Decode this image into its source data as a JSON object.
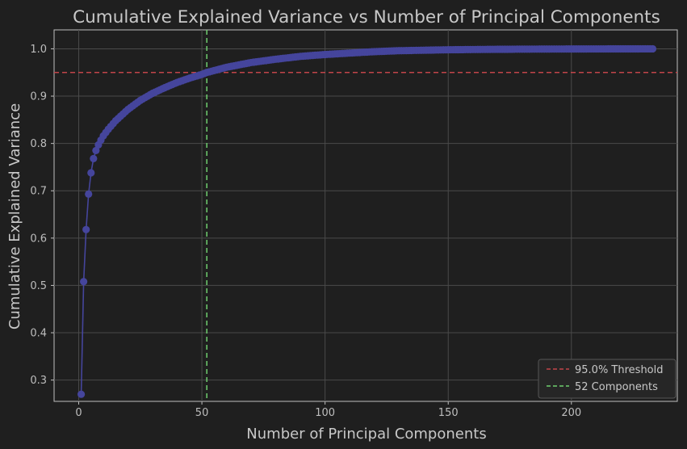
{
  "chart_data": {
    "type": "line",
    "title": "Cumulative Explained Variance vs Number of Principal Components",
    "xlabel": "Number of Principal Components",
    "ylabel": "Cumulative Explained Variance",
    "xlim": [
      -10,
      243
    ],
    "ylim": [
      0.255,
      1.04
    ],
    "xticks": [
      0,
      50,
      100,
      150,
      200
    ],
    "yticks": [
      0.3,
      0.4,
      0.5,
      0.6,
      0.7,
      0.8,
      0.9,
      1.0
    ],
    "xtick_labels": [
      "0",
      "50",
      "100",
      "150",
      "200"
    ],
    "ytick_labels": [
      "0.3",
      "0.4",
      "0.5",
      "0.6",
      "0.7",
      "0.8",
      "0.9",
      "1.0"
    ],
    "grid": true,
    "legend_position": "lower-right",
    "series": [
      {
        "name": "",
        "color": "#45459c",
        "marker": "circle",
        "x_range": [
          1,
          233
        ],
        "key_points": [
          [
            1,
            0.27
          ],
          [
            2,
            0.508
          ],
          [
            3,
            0.618
          ],
          [
            4,
            0.693
          ],
          [
            5,
            0.738
          ],
          [
            6,
            0.768
          ],
          [
            7,
            0.785
          ],
          [
            8,
            0.797
          ],
          [
            9,
            0.807
          ],
          [
            10,
            0.816
          ],
          [
            12,
            0.83
          ],
          [
            15,
            0.848
          ],
          [
            20,
            0.872
          ],
          [
            25,
            0.891
          ],
          [
            30,
            0.906
          ],
          [
            35,
            0.918
          ],
          [
            40,
            0.929
          ],
          [
            45,
            0.938
          ],
          [
            50,
            0.946
          ],
          [
            52,
            0.95
          ],
          [
            55,
            0.954
          ],
          [
            60,
            0.961
          ],
          [
            70,
            0.971
          ],
          [
            80,
            0.978
          ],
          [
            90,
            0.984
          ],
          [
            100,
            0.988
          ],
          [
            110,
            0.991
          ],
          [
            120,
            0.994
          ],
          [
            130,
            0.996
          ],
          [
            140,
            0.997
          ],
          [
            150,
            0.998
          ],
          [
            170,
            0.999
          ],
          [
            190,
            0.9995
          ],
          [
            210,
            0.9998
          ],
          [
            233,
            1.0
          ]
        ]
      }
    ],
    "reference_lines": [
      {
        "orientation": "horizontal",
        "value": 0.95,
        "color": "#c2454a",
        "style": "dashed",
        "label": "95.0% Threshold"
      },
      {
        "orientation": "vertical",
        "value": 52,
        "color": "#6fcf6f",
        "style": "dashed",
        "label": "52 Components"
      }
    ]
  }
}
